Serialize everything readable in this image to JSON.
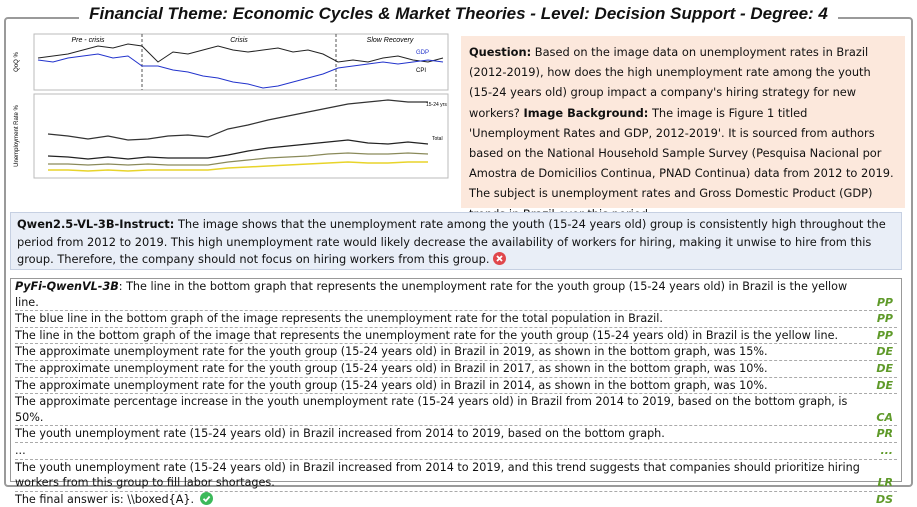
{
  "title": "Financial Theme: Economic Cycles & Market Theories - Level: Decision Support - Degree: 4",
  "figure": {
    "top_panel": {
      "y_label": "QoQ %",
      "periods": [
        "Pre - crisis",
        "Crisis",
        "Slow Recovery"
      ],
      "legend": [
        "GDP",
        "CPI"
      ]
    },
    "bottom_panel": {
      "y_label": "Unemployment Rate %",
      "line_labels": [
        "15-24 yrs",
        "Total"
      ]
    }
  },
  "question": {
    "label": "Question:",
    "text": "Based on the image data on unemployment rates in Brazil (2012-2019), how does the high unemployment rate among the youth (15-24 years old) group impact a company's hiring strategy for new workers?",
    "background_label": "Image Background:",
    "background_text": "The image is Figure 1 titled 'Unemployment Rates and GDP, 2012-2019'. It is sourced from authors based on the National Household Sample Survey (Pesquisa Nacional por Amostra de Domicilios Continua, PNAD Continua) data from 2012 to 2019. The subject is unemployment rates and Gross Domestic Product (GDP) trends in Brazil over this period."
  },
  "baseline": {
    "model": "Qwen2.5-VL-3B-Instruct:",
    "text": "The image shows that the unemployment rate among the youth (15-24 years old) group is consistently high throughout the period from 2012 to 2019. This high unemployment rate would likely decrease the availability of workers for hiring, making it unwise to hire from this group. Therefore, the company should not focus on hiring workers from this group."
  },
  "steps": {
    "model": "PyFi-QwenVL-3B",
    "rows": [
      {
        "text": ": The line in the bottom graph that represents the unemployment rate for the youth group (15-24 years old) in Brazil is the yellow line.",
        "tag": "PP"
      },
      {
        "text": "The blue line in the bottom graph of the image represents the unemployment rate for the total population in Brazil.",
        "tag": "PP"
      },
      {
        "text": "The line in the bottom graph of the image that represents the unemployment rate for the youth group (15-24 years old) in Brazil is the yellow line.",
        "tag": "PP"
      },
      {
        "text": "The approximate unemployment rate for the youth group (15-24 years old) in Brazil in 2019, as shown in the bottom graph, was 15%.",
        "tag": "DE"
      },
      {
        "text": "The approximate unemployment rate for the youth group (15-24 years old) in Brazil in 2017, as shown in the bottom graph, was 10%.",
        "tag": "DE"
      },
      {
        "text": "The approximate unemployment rate for the youth group (15-24 years old) in Brazil in 2014, as shown in the bottom graph, was 10%.",
        "tag": "DE"
      },
      {
        "text": "The approximate percentage increase in the youth unemployment rate (15-24 years old) in Brazil from 2014 to 2019, based on the bottom graph, is 50%.",
        "tag": "CA"
      },
      {
        "text": "The youth unemployment rate (15-24 years old) in Brazil increased from 2014 to 2019, based on the bottom graph.",
        "tag": "PR"
      },
      {
        "text": "...",
        "tag": "..."
      },
      {
        "text": "The youth unemployment rate (15-24 years old) in Brazil increased from 2014 to 2019, and this trend suggests that companies should prioritize hiring workers from this group to fill labor shortages.",
        "tag": "LR"
      },
      {
        "text": "The final answer is: \\\\boxed{A}.",
        "tag": "DS"
      }
    ]
  }
}
